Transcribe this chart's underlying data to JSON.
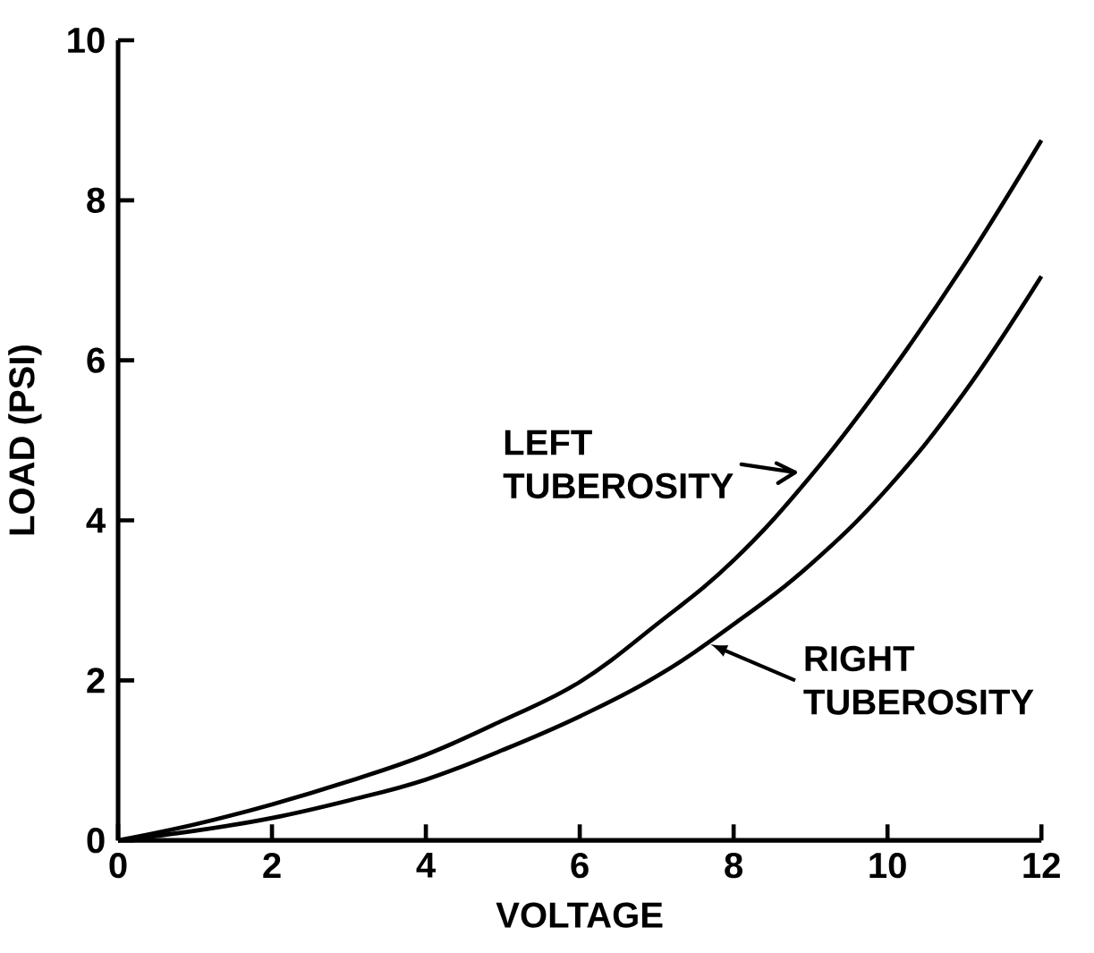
{
  "chart_data": {
    "type": "line",
    "xlabel": "VOLTAGE",
    "ylabel": "LOAD (PSI)",
    "x": [
      0,
      1,
      2,
      3,
      4,
      5,
      6,
      7,
      8,
      9,
      10,
      11,
      12
    ],
    "series": [
      {
        "name": "LEFT TUBEROSITY",
        "color": "#000000",
        "values": [
          0,
          0.2,
          0.45,
          0.74,
          1.07,
          1.5,
          1.98,
          2.7,
          3.5,
          4.55,
          5.8,
          7.2,
          8.75
        ]
      },
      {
        "name": "RIGHT TUBEROSITY",
        "color": "#000000",
        "values": [
          0,
          0.12,
          0.28,
          0.5,
          0.76,
          1.13,
          1.55,
          2.05,
          2.7,
          3.45,
          4.4,
          5.6,
          7.05
        ]
      }
    ],
    "xlim": [
      0,
      12
    ],
    "ylim": [
      0,
      10
    ],
    "xticks": [
      0,
      2,
      4,
      6,
      8,
      10,
      12
    ],
    "yticks": [
      0,
      2,
      4,
      6,
      8,
      10
    ]
  }
}
